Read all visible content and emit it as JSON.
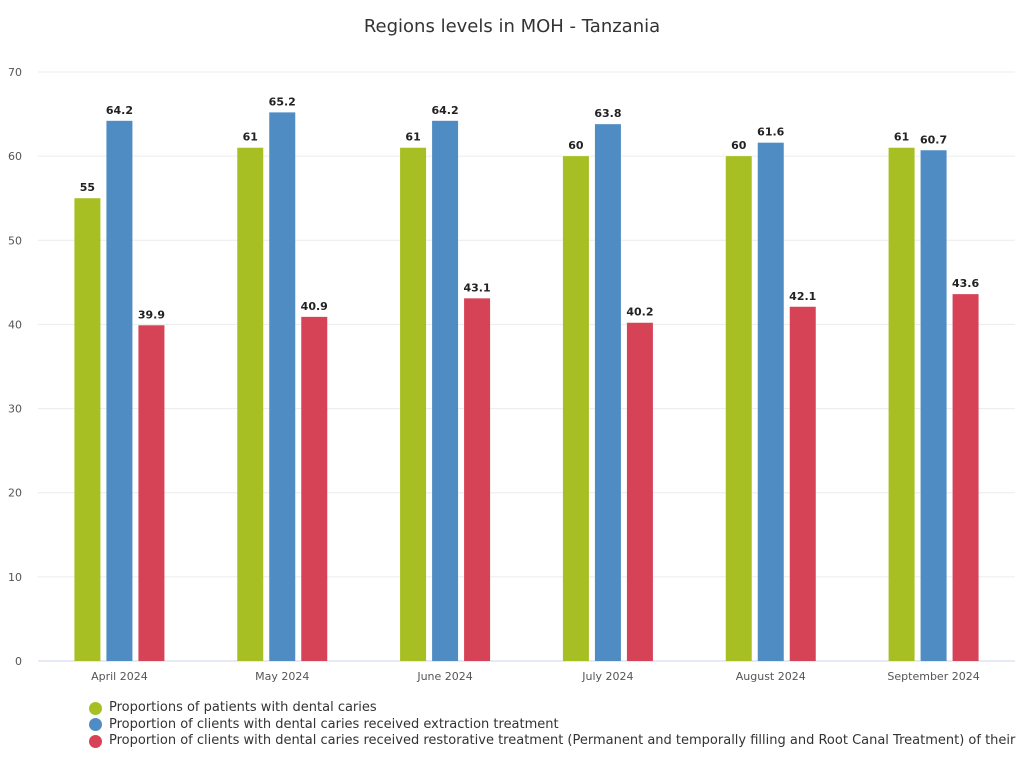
{
  "chart_data": {
    "type": "bar",
    "title": "Regions levels in MOH - Tanzania",
    "xlabel": "",
    "ylabel": "",
    "ylim": [
      0,
      70
    ],
    "yticks": [
      0,
      10,
      20,
      30,
      40,
      50,
      60,
      70
    ],
    "grid": true,
    "legend_position": "bottom",
    "categories": [
      "April 2024",
      "May 2024",
      "June 2024",
      "July 2024",
      "August 2024",
      "September 2024"
    ],
    "series": [
      {
        "name": "Proportions of patients with dental caries",
        "color": "#a8bf23",
        "values": [
          55,
          61,
          61,
          60,
          60,
          61
        ]
      },
      {
        "name": "Proportion of clients with dental caries received extraction treatment",
        "color": "#4f8cc4",
        "values": [
          64.2,
          65.2,
          64.2,
          63.8,
          61.6,
          60.7
        ]
      },
      {
        "name": "Proportion of clients with dental caries received restorative treatment (Permanent and temporally filling and Root Canal Treatment) of their",
        "color": "#d64356",
        "values": [
          39.9,
          40.9,
          43.1,
          40.2,
          42.1,
          43.6
        ]
      }
    ]
  }
}
